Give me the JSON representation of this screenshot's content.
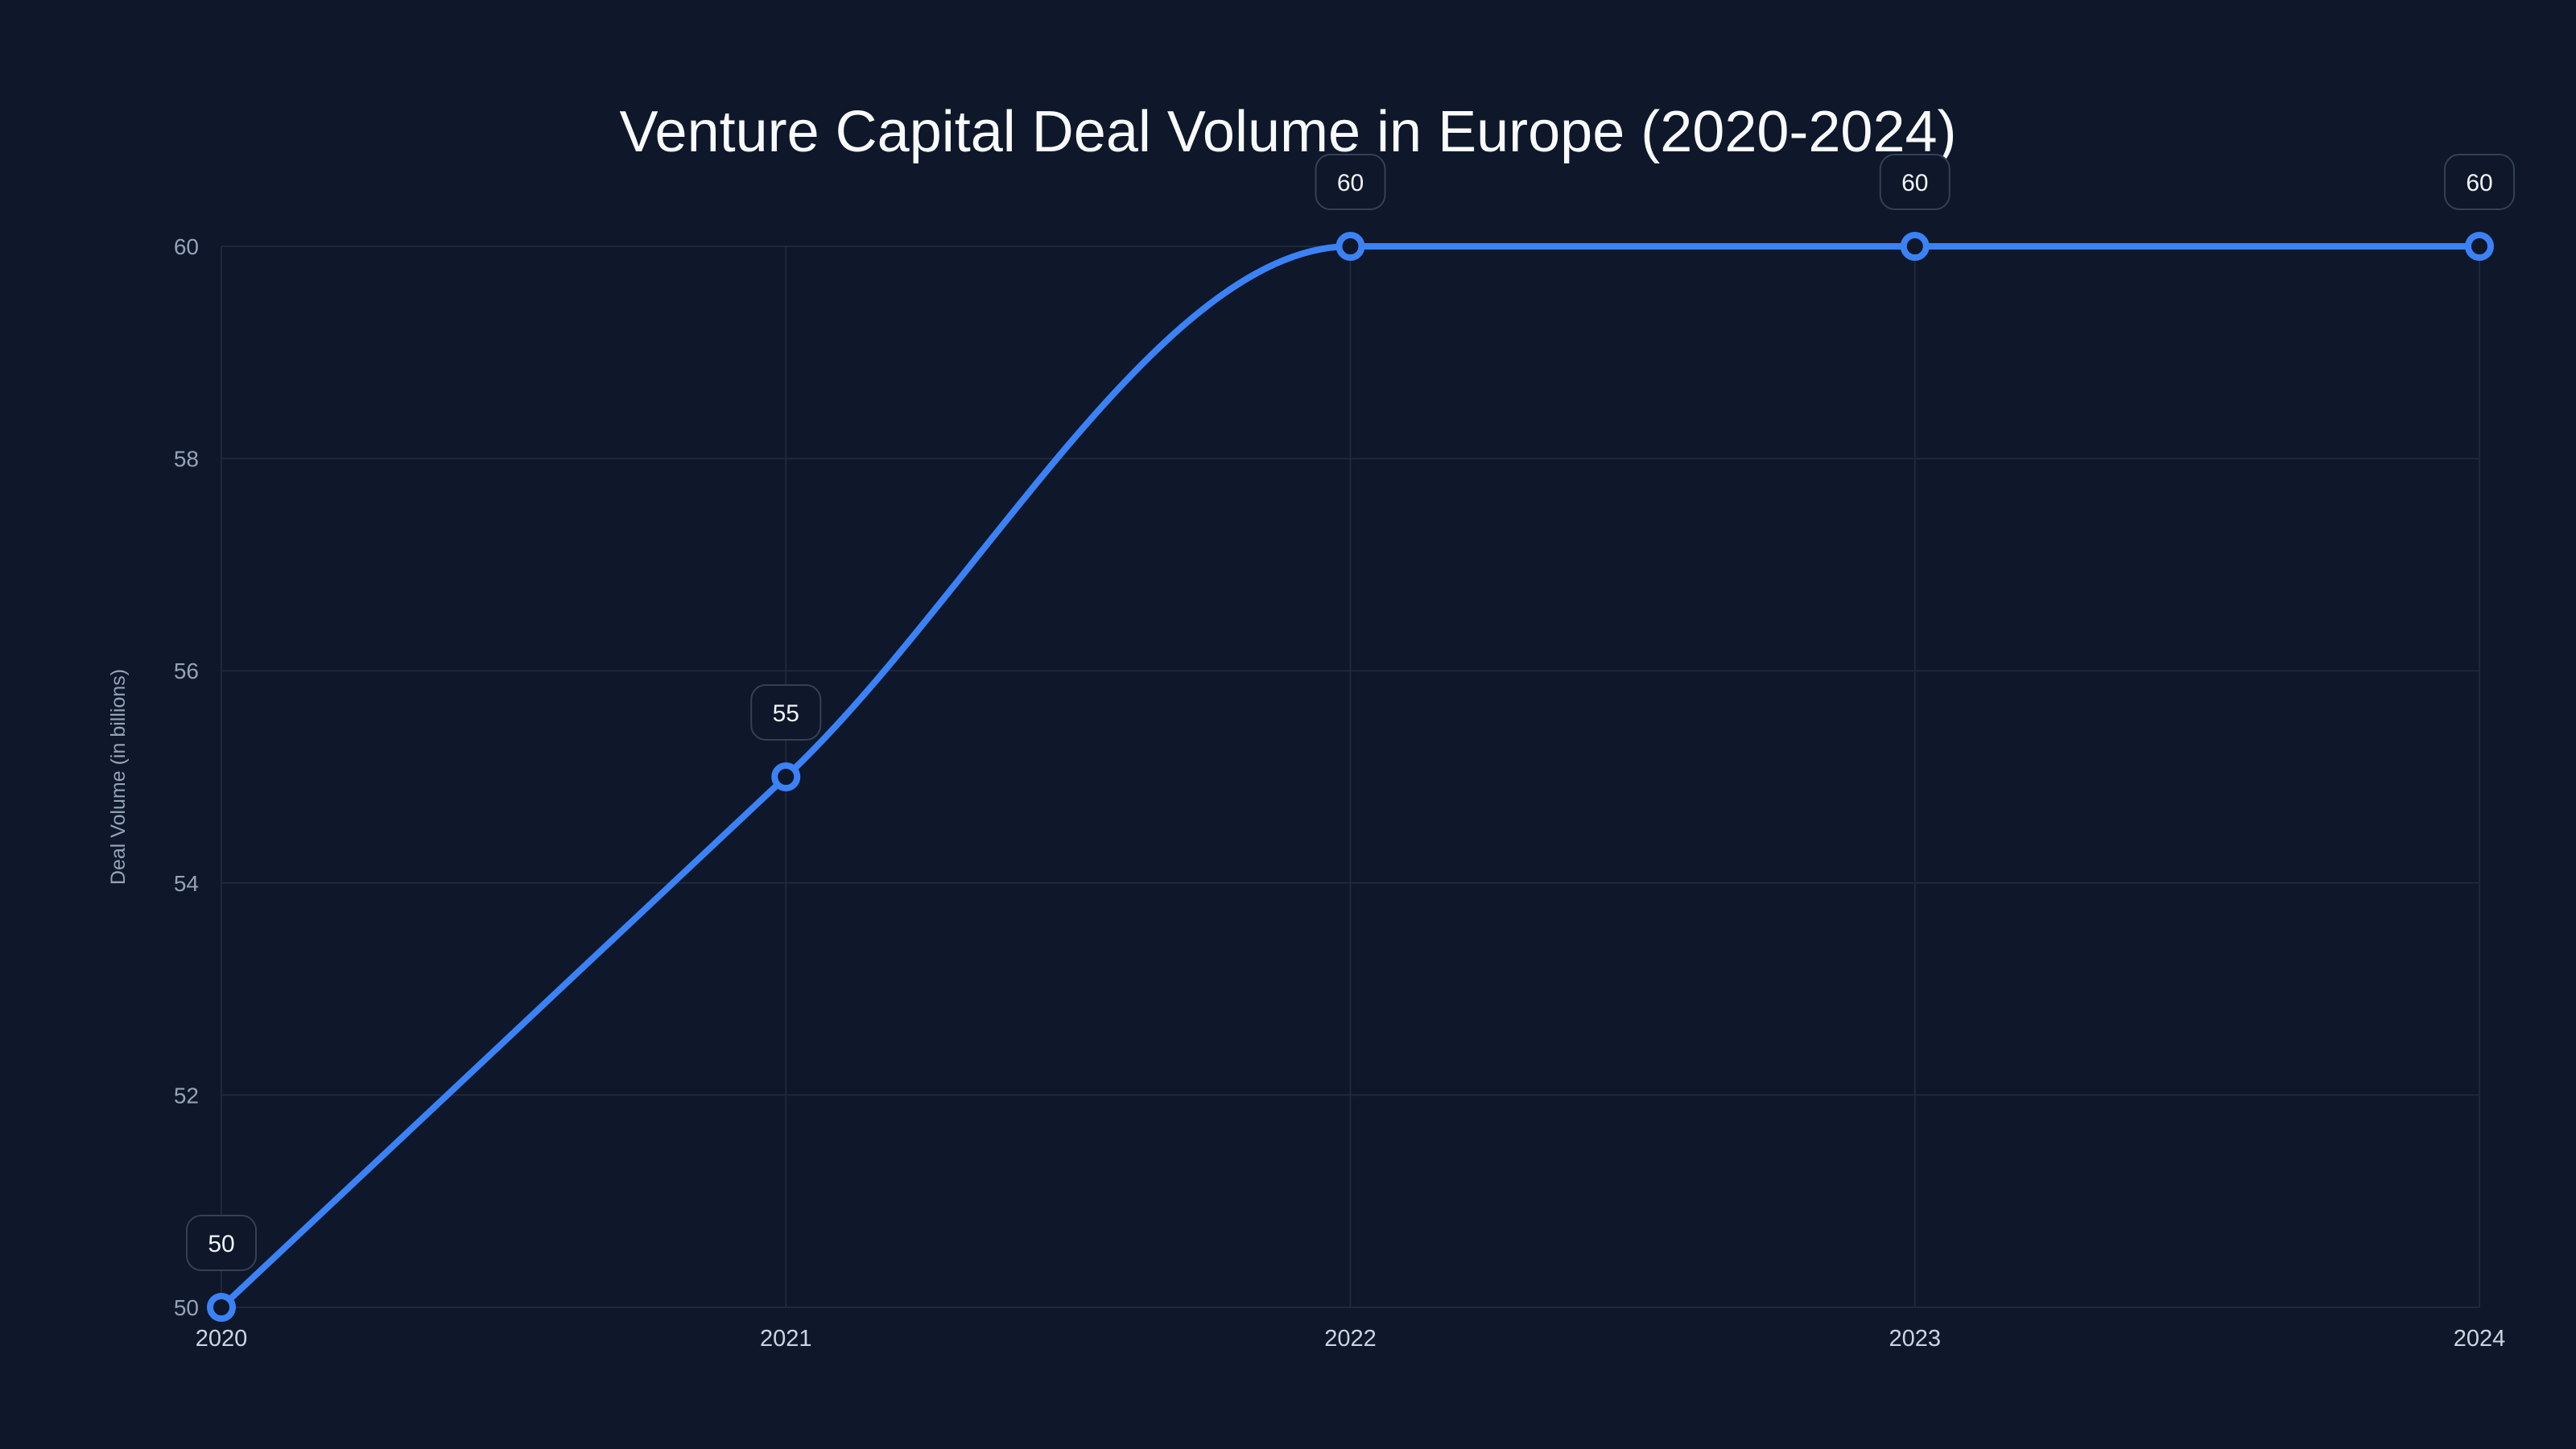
{
  "chart_data": {
    "type": "line",
    "title": "Venture Capital Deal Volume in Europe (2020-2024)",
    "xlabel": "",
    "ylabel": "Deal Volume (in billions)",
    "categories": [
      "2020",
      "2021",
      "2022",
      "2023",
      "2024"
    ],
    "series": [
      {
        "name": "Deal Volume",
        "values": [
          50,
          55,
          60,
          60,
          60
        ],
        "color": "#3b82f6"
      }
    ],
    "ylim": [
      50,
      60
    ],
    "yticks": [
      50,
      52,
      54,
      56,
      58,
      60
    ],
    "grid": true,
    "data_labels": true,
    "legend": "none"
  }
}
